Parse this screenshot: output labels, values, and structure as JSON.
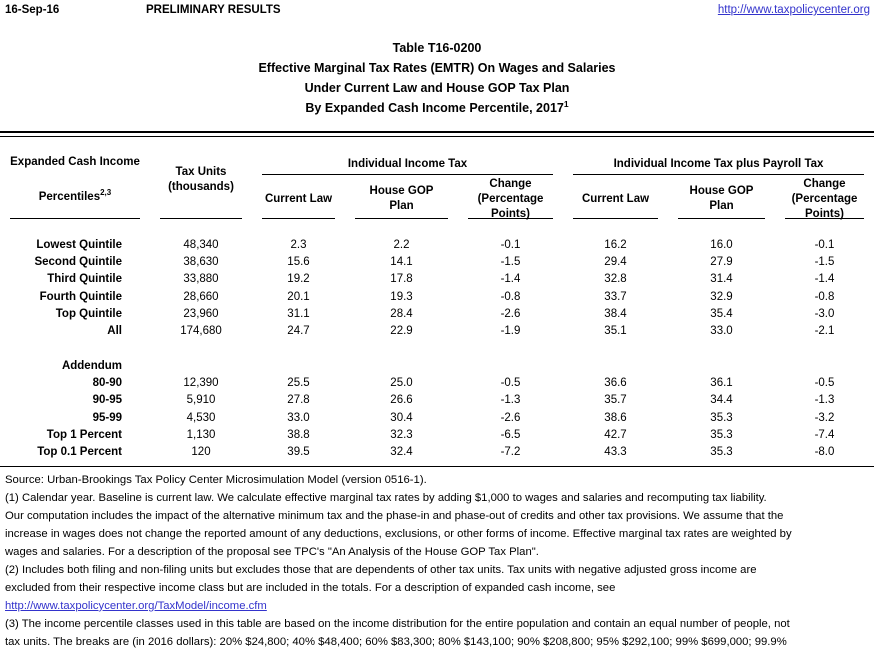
{
  "colors": {
    "link": "#3333cc",
    "text": "#000000",
    "rule": "#000000"
  },
  "topbar": {
    "date": "16-Sep-16",
    "status": "PRELIMINARY RESULTS",
    "url": "http://www.taxpolicycenter.org"
  },
  "title": {
    "line1": "Table T16-0200",
    "line2": "Effective Marginal Tax Rates (EMTR) On Wages and Salaries",
    "line3": "Under Current Law and House GOP Tax Plan",
    "line4": "By Expanded Cash Income Percentile, 2017",
    "line4_sup": "1"
  },
  "table": {
    "row_header": {
      "line1": "Expanded Cash Income",
      "line2": "Percentiles",
      "sup": "2,3"
    },
    "tax_units_header": "Tax Units\n(thousands)",
    "group1": "Individual Income Tax",
    "group2": "Individual Income Tax plus Payroll Tax",
    "subheads": [
      "Current Law",
      "House GOP\nPlan",
      "Change\n(Percentage\nPoints)",
      "Current Law",
      "House GOP\nPlan",
      "Change\n(Percentage\nPoints)"
    ],
    "rows": [
      [
        "Lowest Quintile",
        "48,340",
        "2.3",
        "2.2",
        "-0.1",
        "16.2",
        "16.0",
        "-0.1"
      ],
      [
        "Second Quintile",
        "38,630",
        "15.6",
        "14.1",
        "-1.5",
        "29.4",
        "27.9",
        "-1.5"
      ],
      [
        "Third Quintile",
        "33,880",
        "19.2",
        "17.8",
        "-1.4",
        "32.8",
        "31.4",
        "-1.4"
      ],
      [
        "Fourth Quintile",
        "28,660",
        "20.1",
        "19.3",
        "-0.8",
        "33.7",
        "32.9",
        "-0.8"
      ],
      [
        "Top Quintile",
        "23,960",
        "31.1",
        "28.4",
        "-2.6",
        "38.4",
        "35.4",
        "-3.0"
      ],
      [
        "All",
        "174,680",
        "24.7",
        "22.9",
        "-1.9",
        "35.1",
        "33.0",
        "-2.1"
      ],
      [
        "",
        "",
        "",
        "",
        "",
        "",
        "",
        ""
      ],
      [
        "Addendum",
        "",
        "",
        "",
        "",
        "",
        "",
        ""
      ],
      [
        "80-90",
        "12,390",
        "25.5",
        "25.0",
        "-0.5",
        "36.6",
        "36.1",
        "-0.5"
      ],
      [
        "90-95",
        "5,910",
        "27.8",
        "26.6",
        "-1.3",
        "35.7",
        "34.4",
        "-1.3"
      ],
      [
        "95-99",
        "4,530",
        "33.0",
        "30.4",
        "-2.6",
        "38.6",
        "35.3",
        "-3.2"
      ],
      [
        "Top 1 Percent",
        "1,130",
        "38.8",
        "32.3",
        "-6.5",
        "42.7",
        "35.3",
        "-7.4"
      ],
      [
        "Top 0.1 Percent",
        "120",
        "39.5",
        "32.4",
        "-7.2",
        "43.3",
        "35.3",
        "-8.0"
      ]
    ]
  },
  "notes": {
    "source": "Source: Urban-Brookings Tax Policy Center Microsimulation Model (version 0516-1).",
    "note1": "(1) Calendar year. Baseline is current law. We calculate effective marginal tax rates by adding $1,000 to wages and salaries and recomputing tax liability.\nOur computation includes the impact of the alternative minimum tax and the phase-in and phase-out of credits and other tax provisions. We assume that the\nincrease in wages does not change the reported amount of any deductions, exclusions, or other forms of income. Effective marginal tax rates are weighted by\nwages and salaries. For a description of the proposal see TPC's \"An Analysis of the House GOP Tax Plan\".",
    "note2": "(2) Includes both filing and non-filing units but excludes those that are dependents of other tax units. Tax units with negative adjusted gross income are\nexcluded from their respective income class but are included in the totals. For a description of expanded cash income, see",
    "note2_link": "http://www.taxpolicycenter.org/TaxModel/income.cfm",
    "note3": "(3) The income percentile classes used in this table are based on the income distribution for the entire population and contain an equal number of people, not\ntax units. The breaks are (in 2016 dollars): 20% $24,800; 40% $48,400; 60% $83,300; 80% $143,100; 90% $208,800; 95% $292,100; 99% $699,000; 99.9%"
  }
}
